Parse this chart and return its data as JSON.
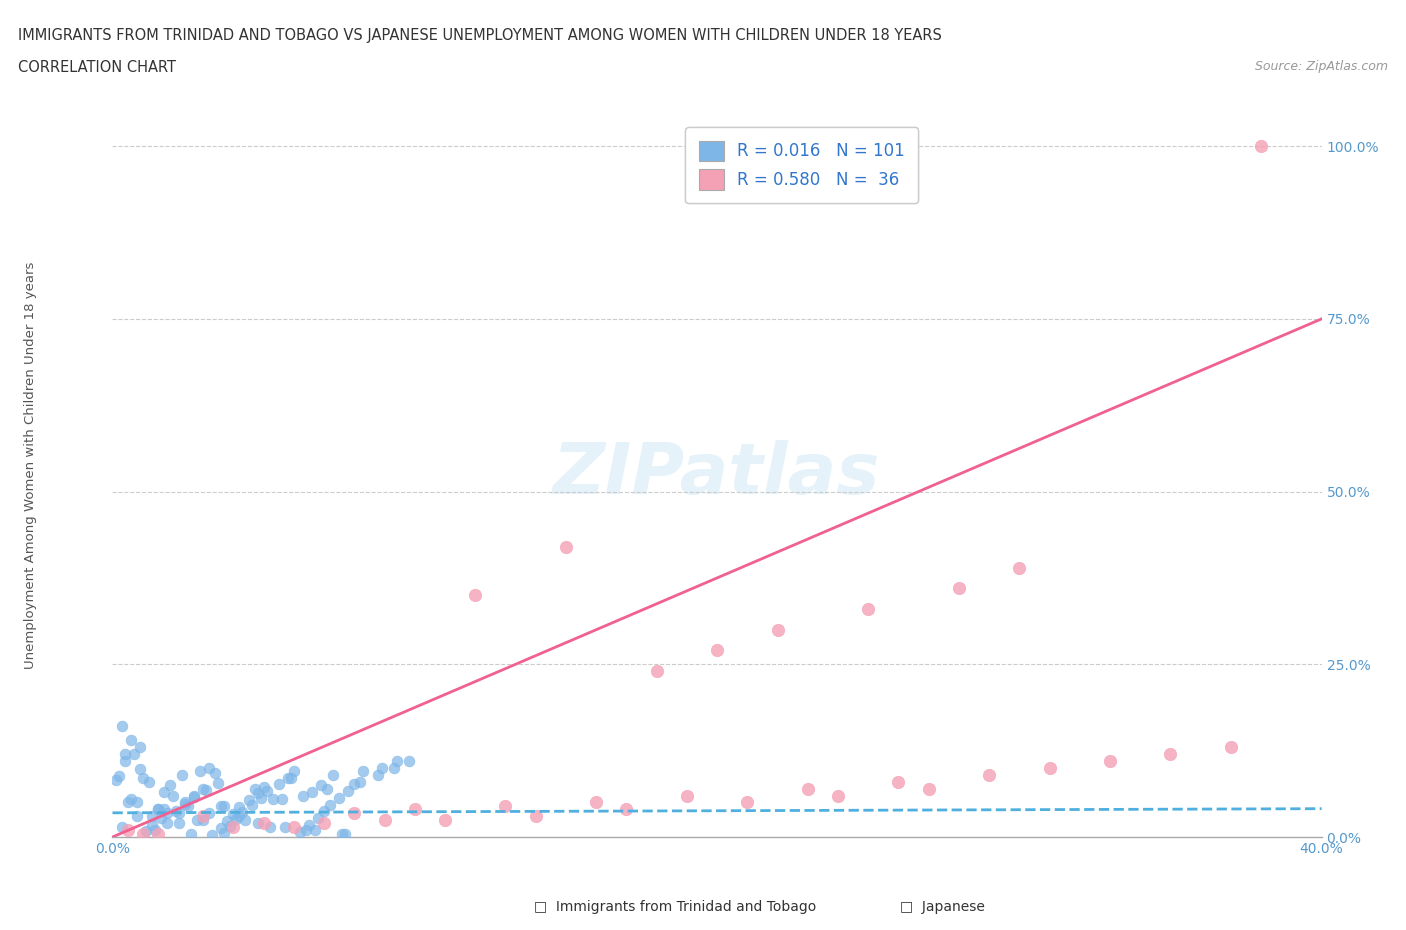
{
  "title_line1": "IMMIGRANTS FROM TRINIDAD AND TOBAGO VS JAPANESE UNEMPLOYMENT AMONG WOMEN WITH CHILDREN UNDER 18 YEARS",
  "title_line2": "CORRELATION CHART",
  "source": "Source: ZipAtlas.com",
  "xlabel": "",
  "ylabel": "Unemployment Among Women with Children Under 18 years",
  "x_min": 0.0,
  "x_max": 0.4,
  "y_min": 0.0,
  "y_max": 1.05,
  "x_ticks": [
    0.0,
    0.1,
    0.2,
    0.3,
    0.4
  ],
  "x_tick_labels": [
    "0.0%",
    "",
    "",
    "",
    "40.0%"
  ],
  "y_ticks": [
    0.0,
    0.25,
    0.5,
    0.75,
    1.0
  ],
  "y_tick_labels": [
    "0.0%",
    "25.0%",
    "50.0%",
    "75.0%",
    "100.0%"
  ],
  "blue_R": "0.016",
  "blue_N": "101",
  "pink_R": "0.580",
  "pink_N": "36",
  "blue_color": "#7EB6E8",
  "pink_color": "#F4A0B5",
  "blue_line_color": "#4FAFDE",
  "pink_line_color": "#F06090",
  "watermark": "ZIPatlas",
  "blue_scatter_x": [
    0.005,
    0.008,
    0.012,
    0.015,
    0.018,
    0.02,
    0.022,
    0.025,
    0.028,
    0.03,
    0.003,
    0.006,
    0.01,
    0.014,
    0.017,
    0.019,
    0.023,
    0.026,
    0.029,
    0.032,
    0.004,
    0.007,
    0.011,
    0.013,
    0.016,
    0.021,
    0.024,
    0.027,
    0.031,
    0.035,
    0.002,
    0.009,
    0.033,
    0.036,
    0.038,
    0.04,
    0.042,
    0.045,
    0.048,
    0.05,
    0.001,
    0.034,
    0.037,
    0.039,
    0.041,
    0.043,
    0.046,
    0.049,
    0.051,
    0.055,
    0.058,
    0.06,
    0.062,
    0.065,
    0.068,
    0.07,
    0.072,
    0.075,
    0.078,
    0.08,
    0.003,
    0.006,
    0.009,
    0.015,
    0.018,
    0.024,
    0.03,
    0.036,
    0.042,
    0.048,
    0.053,
    0.057,
    0.063,
    0.067,
    0.071,
    0.076,
    0.082,
    0.088,
    0.093,
    0.098,
    0.004,
    0.008,
    0.013,
    0.017,
    0.022,
    0.027,
    0.032,
    0.037,
    0.044,
    0.047,
    0.052,
    0.056,
    0.059,
    0.064,
    0.066,
    0.069,
    0.073,
    0.077,
    0.083,
    0.089,
    0.094
  ],
  "blue_scatter_y": [
    0.05,
    0.03,
    0.08,
    0.04,
    0.02,
    0.06,
    0.035,
    0.045,
    0.025,
    0.07,
    0.015,
    0.055,
    0.085,
    0.01,
    0.065,
    0.075,
    0.09,
    0.005,
    0.095,
    0.1,
    0.11,
    0.12,
    0.008,
    0.018,
    0.028,
    0.038,
    0.048,
    0.058,
    0.068,
    0.078,
    0.088,
    0.098,
    0.003,
    0.013,
    0.023,
    0.033,
    0.043,
    0.053,
    0.063,
    0.073,
    0.083,
    0.093,
    0.006,
    0.016,
    0.026,
    0.036,
    0.046,
    0.056,
    0.066,
    0.076,
    0.086,
    0.096,
    0.007,
    0.017,
    0.027,
    0.037,
    0.047,
    0.057,
    0.067,
    0.077,
    0.16,
    0.14,
    0.13,
    0.04,
    0.035,
    0.05,
    0.025,
    0.045,
    0.03,
    0.02,
    0.055,
    0.015,
    0.06,
    0.01,
    0.07,
    0.005,
    0.08,
    0.09,
    0.1,
    0.11,
    0.12,
    0.05,
    0.03,
    0.04,
    0.02,
    0.06,
    0.035,
    0.045,
    0.025,
    0.07,
    0.015,
    0.055,
    0.085,
    0.01,
    0.065,
    0.075,
    0.09,
    0.005,
    0.095,
    0.1,
    0.11
  ],
  "pink_scatter_x": [
    0.005,
    0.015,
    0.03,
    0.05,
    0.08,
    0.1,
    0.12,
    0.15,
    0.18,
    0.2,
    0.22,
    0.25,
    0.28,
    0.3,
    0.06,
    0.09,
    0.13,
    0.16,
    0.19,
    0.23,
    0.26,
    0.29,
    0.31,
    0.33,
    0.35,
    0.37,
    0.01,
    0.04,
    0.07,
    0.11,
    0.14,
    0.17,
    0.21,
    0.24,
    0.27,
    0.38
  ],
  "pink_scatter_y": [
    0.01,
    0.005,
    0.03,
    0.02,
    0.035,
    0.04,
    0.35,
    0.42,
    0.24,
    0.27,
    0.3,
    0.33,
    0.36,
    0.39,
    0.015,
    0.025,
    0.045,
    0.05,
    0.06,
    0.07,
    0.08,
    0.09,
    0.1,
    0.11,
    0.12,
    0.13,
    0.005,
    0.015,
    0.02,
    0.025,
    0.03,
    0.04,
    0.05,
    0.06,
    0.07,
    1.0
  ],
  "blue_line_x": [
    0.0,
    0.4
  ],
  "blue_line_y": [
    0.035,
    0.041
  ],
  "pink_line_x": [
    0.0,
    0.4
  ],
  "pink_line_y": [
    0.0,
    0.75
  ]
}
